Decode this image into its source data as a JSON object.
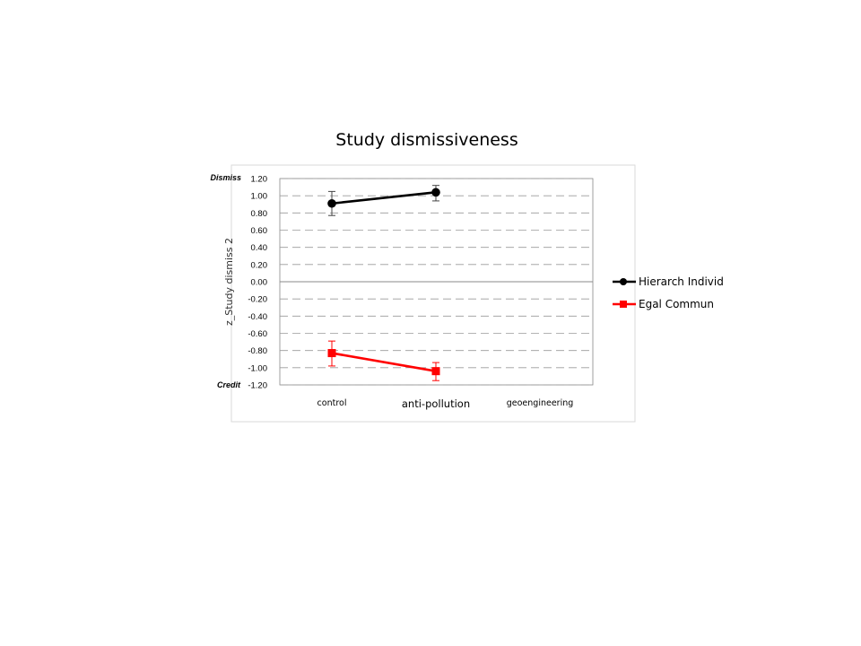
{
  "chart_data": {
    "type": "line",
    "title": "Study dismissiveness",
    "ylabel": "z_Study dismiss 2",
    "xlabel": "",
    "categories": [
      "control",
      "anti-pollution",
      "geoengineering"
    ],
    "ylim": [
      -1.2,
      1.2
    ],
    "yticks": [
      "1.20",
      "1.00",
      "0.80",
      "0.60",
      "0.40",
      "0.20",
      "0.00",
      "-0.20",
      "-0.40",
      "-0.60",
      "-0.80",
      "-1.00",
      "-1.20"
    ],
    "y_top_annotation": "Dismiss",
    "y_bottom_annotation": "Credit",
    "grid": "dashed horizontal",
    "legend_position": "right",
    "series": [
      {
        "name": "Hierarch Individ",
        "color": "#000000",
        "marker": "circle",
        "values": [
          0.91,
          1.04,
          null
        ],
        "err_low": [
          0.77,
          0.94,
          null
        ],
        "err_high": [
          1.05,
          1.12,
          null
        ]
      },
      {
        "name": "Egal Commun",
        "color": "#ff0000",
        "marker": "square",
        "values": [
          -0.83,
          -1.04,
          null
        ],
        "err_low": [
          -0.98,
          -1.15,
          null
        ],
        "err_high": [
          -0.69,
          -0.94,
          null
        ]
      }
    ]
  }
}
